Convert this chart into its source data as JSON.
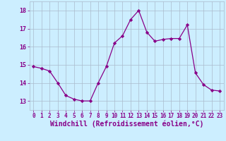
{
  "x": [
    0,
    1,
    2,
    3,
    4,
    5,
    6,
    7,
    8,
    9,
    10,
    11,
    12,
    13,
    14,
    15,
    16,
    17,
    18,
    19,
    20,
    21,
    22,
    23
  ],
  "y": [
    14.9,
    14.8,
    14.65,
    14.0,
    13.3,
    13.1,
    13.0,
    13.0,
    14.0,
    14.9,
    16.2,
    16.6,
    17.5,
    18.0,
    16.8,
    16.3,
    16.4,
    16.45,
    16.45,
    17.2,
    14.55,
    13.9,
    13.6,
    13.55
  ],
  "line_color": "#880088",
  "marker": "D",
  "marker_size": 2.2,
  "bg_color": "#cceeff",
  "grid_color": "#aabbcc",
  "xlabel": "Windchill (Refroidissement éolien,°C)",
  "xlabel_color": "#880088",
  "ylabel_ticks": [
    13,
    14,
    15,
    16,
    17,
    18
  ],
  "xtick_labels": [
    "0",
    "1",
    "2",
    "3",
    "4",
    "5",
    "6",
    "7",
    "8",
    "9",
    "10",
    "11",
    "12",
    "13",
    "14",
    "15",
    "16",
    "17",
    "18",
    "19",
    "20",
    "21",
    "22",
    "23"
  ],
  "ylim": [
    12.5,
    18.5
  ],
  "xlim": [
    -0.5,
    23.5
  ],
  "tick_color": "#880088",
  "tick_fontsize": 5.5,
  "xlabel_fontsize": 7.0,
  "linewidth": 0.9
}
